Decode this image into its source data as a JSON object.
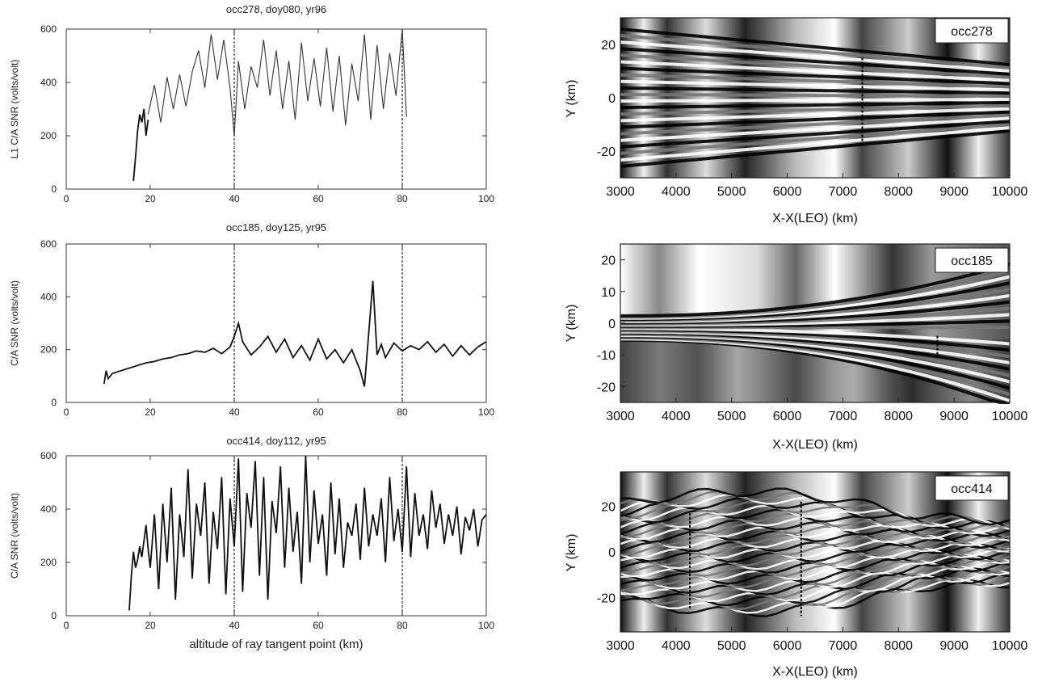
{
  "chart_data": [
    {
      "type": "line",
      "title": "occ278, doy080, yr96",
      "xlabel": "",
      "ylabel": "L1 C/A SNR (volts/volt)",
      "xlim": [
        0,
        100
      ],
      "ylim": [
        0,
        600
      ],
      "xticks": [
        "0",
        "20",
        "40",
        "60",
        "80",
        "100"
      ],
      "yticks": [
        "0",
        "200",
        "400",
        "600"
      ],
      "grid": "vertical lines at 40 and 80",
      "vlines": [
        40,
        80
      ],
      "segments": [
        {
          "x": [
            16,
            16.5,
            17,
            17.5,
            18,
            18.5,
            19,
            19.5
          ],
          "y": [
            30,
            120,
            220,
            280,
            250,
            300,
            200,
            260
          ]
        },
        {
          "x": [
            19.5,
            21,
            22.5,
            24,
            25.5,
            27,
            28.5,
            30,
            31.5,
            33,
            34.5,
            36,
            37.5,
            39,
            40,
            41,
            42.5,
            44,
            45.5,
            47,
            48.5,
            50,
            51.5,
            53,
            54.5,
            56,
            57.5,
            59,
            60.5,
            62,
            63.5,
            65,
            66.5,
            68,
            69.5,
            71,
            72.5,
            74,
            75.5,
            77,
            78.5,
            80,
            81
          ],
          "y": [
            280,
            390,
            250,
            420,
            300,
            430,
            310,
            440,
            520,
            380,
            580,
            410,
            560,
            380,
            200,
            480,
            300,
            460,
            380,
            560,
            350,
            520,
            300,
            480,
            260,
            550,
            330,
            490,
            310,
            530,
            290,
            500,
            240,
            470,
            330,
            580,
            260,
            540,
            300,
            510,
            350,
            600,
            270
          ]
        }
      ]
    },
    {
      "type": "line",
      "title": "occ185, doy125, yr95",
      "xlabel": "",
      "ylabel": "C/A SNR (volts/volt)",
      "xlim": [
        0,
        100
      ],
      "ylim": [
        0,
        600
      ],
      "xticks": [
        "0",
        "20",
        "40",
        "60",
        "80",
        "100"
      ],
      "yticks": [
        "0",
        "200",
        "400",
        "600"
      ],
      "vlines": [
        40,
        80
      ],
      "segments": [
        {
          "x": [
            9,
            9.5,
            10,
            11,
            13,
            15,
            17,
            19,
            21,
            23,
            25,
            27,
            29,
            31,
            33,
            35,
            37,
            39,
            40,
            41,
            42,
            44,
            46,
            48,
            50,
            52,
            54,
            56,
            58,
            60,
            62,
            64,
            66,
            68,
            70,
            71,
            72,
            73,
            74,
            75,
            76,
            78,
            80,
            82,
            84,
            86,
            88,
            90,
            92,
            94,
            96,
            98,
            100
          ],
          "y": [
            70,
            120,
            90,
            110,
            120,
            130,
            140,
            150,
            155,
            165,
            170,
            180,
            185,
            195,
            190,
            205,
            185,
            210,
            250,
            300,
            230,
            180,
            210,
            250,
            190,
            240,
            170,
            215,
            160,
            240,
            165,
            200,
            150,
            200,
            120,
            60,
            260,
            460,
            180,
            220,
            170,
            225,
            195,
            215,
            200,
            230,
            190,
            220,
            175,
            215,
            180,
            210,
            230
          ]
        }
      ]
    },
    {
      "type": "line",
      "title": "occ414, doy112, yr95",
      "xlabel": "altitude of ray tangent point (km)",
      "ylabel": "C/A SNR (volts/volt)",
      "xlim": [
        0,
        100
      ],
      "ylim": [
        0,
        600
      ],
      "xticks": [
        "0",
        "20",
        "40",
        "60",
        "80",
        "100"
      ],
      "yticks": [
        "0",
        "200",
        "400",
        "600"
      ],
      "vlines": [
        40,
        80
      ],
      "segments": [
        {
          "x": [
            15,
            15.5,
            16,
            16.5,
            17,
            17.5,
            18,
            18.5,
            19,
            19.5,
            20,
            21,
            22,
            23,
            24,
            25,
            26,
            27,
            28,
            29,
            30,
            31,
            32,
            33,
            34,
            35,
            36,
            37,
            38,
            39,
            40,
            41,
            42,
            43,
            44,
            45,
            46,
            47,
            48,
            49,
            50,
            51,
            52,
            53,
            54,
            55,
            56,
            57,
            58,
            59,
            60,
            61,
            62,
            63,
            64,
            65,
            66,
            67,
            68,
            69,
            70,
            71,
            72,
            73,
            74,
            75,
            76,
            77,
            78,
            79,
            80,
            81,
            82,
            83,
            84,
            85,
            86,
            87,
            88,
            89,
            90,
            91,
            92,
            93,
            94,
            95,
            96,
            97,
            98,
            99,
            100
          ],
          "y": [
            20,
            150,
            240,
            180,
            210,
            260,
            220,
            280,
            340,
            250,
            180,
            380,
            100,
            420,
            200,
            480,
            60,
            380,
            220,
            550,
            140,
            420,
            300,
            500,
            120,
            390,
            250,
            520,
            80,
            440,
            260,
            590,
            90,
            460,
            330,
            580,
            150,
            520,
            60,
            430,
            310,
            560,
            180,
            480,
            240,
            390,
            120,
            600,
            200,
            470,
            270,
            380,
            150,
            500,
            230,
            440,
            180,
            350,
            300,
            420,
            210,
            480,
            260,
            380,
            300,
            440,
            200,
            520,
            280,
            400,
            240,
            560,
            220,
            460,
            300,
            380,
            250,
            470,
            330,
            420,
            270,
            380,
            300,
            410,
            230,
            370,
            320,
            400,
            260,
            360,
            380
          ]
        }
      ]
    },
    {
      "type": "heatmap",
      "xlabel": "X-X(LEO) (km)",
      "ylabel": "Y (km)",
      "xlim": [
        3000,
        10000
      ],
      "ylim": [
        -30,
        30
      ],
      "xticks": [
        "3000",
        "4000",
        "5000",
        "6000",
        "7000",
        "8000",
        "9000",
        "10000"
      ],
      "yticks": [
        "-20",
        "0",
        "20"
      ],
      "legend": "occ278",
      "markers_x": [
        7350
      ],
      "colormap": "grayscale"
    },
    {
      "type": "heatmap",
      "xlabel": "X-X(LEO) (km)",
      "ylabel": "Y (km)",
      "xlim": [
        3000,
        10000
      ],
      "ylim": [
        -25,
        25
      ],
      "xticks": [
        "3000",
        "4000",
        "5000",
        "6000",
        "7000",
        "8000",
        "9000",
        "10000"
      ],
      "yticks": [
        "-20",
        "-10",
        "0",
        "10",
        "20"
      ],
      "legend": "occ185",
      "markers_x": [
        8700
      ],
      "colormap": "grayscale"
    },
    {
      "type": "heatmap",
      "xlabel": "X-X(LEO) (km)",
      "ylabel": "Y (km)",
      "xlim": [
        3000,
        10000
      ],
      "ylim": [
        -35,
        35
      ],
      "xticks": [
        "3000",
        "4000",
        "5000",
        "6000",
        "7000",
        "8000",
        "9000",
        "10000"
      ],
      "yticks": [
        "-20",
        "0",
        "20"
      ],
      "legend": "occ414",
      "markers_x": [
        4250,
        6250
      ],
      "colormap": "grayscale"
    }
  ]
}
